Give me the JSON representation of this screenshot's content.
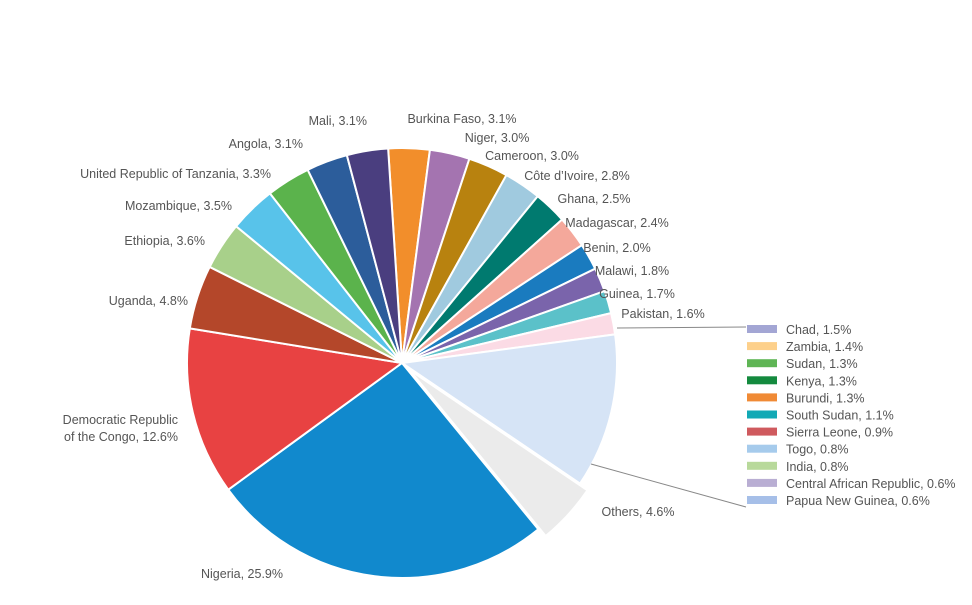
{
  "chart_data": {
    "type": "pie",
    "title": "",
    "start_angle_deg": -3.7,
    "direction": "clockwise",
    "slices": [
      {
        "label": "Burkina Faso, 3.1%",
        "value": 3.1,
        "color": "#f28e2b"
      },
      {
        "label": "Niger, 3.0%",
        "value": 3.0,
        "color": "#a474b0"
      },
      {
        "label": "Cameroon, 3.0%",
        "value": 3.0,
        "color": "#b8820f"
      },
      {
        "label": "Côte d’Ivoire, 2.8%",
        "value": 2.8,
        "color": "#a0cadf"
      },
      {
        "label": "Ghana, 2.5%",
        "value": 2.5,
        "color": "#007a6f"
      },
      {
        "label": "Madagascar, 2.4%",
        "value": 2.4,
        "color": "#f4a89b"
      },
      {
        "label": "Benin, 2.0%",
        "value": 2.0,
        "color": "#1a7bbf"
      },
      {
        "label": "Malawi, 1.8%",
        "value": 1.8,
        "color": "#7a64ab"
      },
      {
        "label": "Guinea, 1.7%",
        "value": 1.7,
        "color": "#5bc1c9"
      },
      {
        "label": "Pakistan, 1.6%",
        "value": 1.6,
        "color": "#fbdbe5"
      },
      {
        "label": "",
        "value": 11.6,
        "color": "#d6e4f6",
        "group": "legend"
      },
      {
        "label": "Others, 4.6%",
        "value": 4.6,
        "color": "#ebebeb",
        "exploded": true
      },
      {
        "label": "Nigeria, 25.9%",
        "value": 25.9,
        "color": "#1189cd"
      },
      {
        "label": "Democratic Republic|of the Congo, 12.6%",
        "value": 12.6,
        "color": "#e84242"
      },
      {
        "label": "Uganda, 4.8%",
        "value": 4.8,
        "color": "#b4472a"
      },
      {
        "label": "Ethiopia, 3.6%",
        "value": 3.6,
        "color": "#a8d08a"
      },
      {
        "label": "Mozambique, 3.5%",
        "value": 3.5,
        "color": "#58c3ea"
      },
      {
        "label": "United Republic of Tanzania, 3.3%",
        "value": 3.3,
        "color": "#5bb34c"
      },
      {
        "label": "Angola, 3.1%",
        "value": 3.1,
        "color": "#2c5d9b"
      },
      {
        "label": "Mali, 3.1%",
        "value": 3.1,
        "color": "#4a3e7f"
      }
    ],
    "legend": [
      {
        "label": "Chad, 1.5%",
        "value": 1.5,
        "color": "#a3a6d4"
      },
      {
        "label": "Zambia, 1.4%",
        "value": 1.4,
        "color": "#fdd08b"
      },
      {
        "label": "Sudan, 1.3%",
        "value": 1.3,
        "color": "#5fb555"
      },
      {
        "label": "Kenya, 1.3%",
        "value": 1.3,
        "color": "#148a3e"
      },
      {
        "label": "Burundi, 1.3%",
        "value": 1.3,
        "color": "#f08a35"
      },
      {
        "label": "South Sudan, 1.1%",
        "value": 1.1,
        "color": "#12a9b5"
      },
      {
        "label": "Sierra Leone, 0.9%",
        "value": 0.9,
        "color": "#cf5a5e"
      },
      {
        "label": "Togo, 0.8%",
        "value": 0.8,
        "color": "#a6cbec"
      },
      {
        "label": "India, 0.8%",
        "value": 0.8,
        "color": "#b8d99b"
      },
      {
        "label": "Central African Republic, 0.6%",
        "value": 0.6,
        "color": "#b9aed3"
      },
      {
        "label": "Papua New Guinea, 0.6%",
        "value": 0.6,
        "color": "#a6bfe8"
      }
    ]
  }
}
